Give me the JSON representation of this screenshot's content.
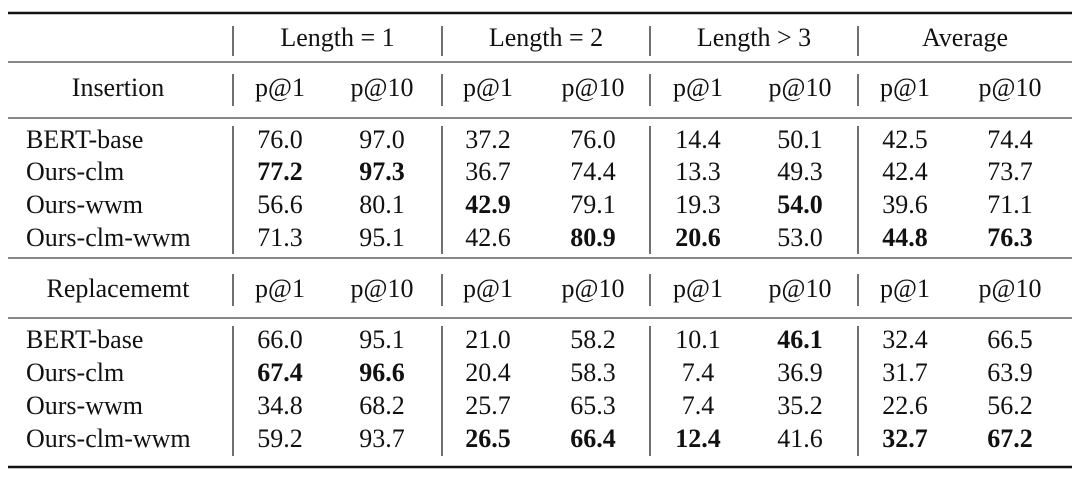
{
  "table": {
    "groups": [
      "Length = 1",
      "Length = 2",
      "Length > 3",
      "Average"
    ],
    "sections": [
      {
        "label": "Insertion",
        "columns": [
          "p@1",
          "p@10",
          "p@1",
          "p@10",
          "p@1",
          "p@10",
          "p@1",
          "p@10"
        ],
        "rows": [
          {
            "label": "BERT-base",
            "cells": [
              {
                "text": "76.0"
              },
              {
                "text": "97.0"
              },
              {
                "text": "37.2"
              },
              {
                "text": "76.0"
              },
              {
                "text": "14.4"
              },
              {
                "text": "50.1"
              },
              {
                "text": "42.5"
              },
              {
                "text": "74.4"
              }
            ]
          },
          {
            "label": "Ours-clm",
            "cells": [
              {
                "text": "77.2",
                "bold": true
              },
              {
                "text": "97.3",
                "bold": true
              },
              {
                "text": "36.7"
              },
              {
                "text": "74.4"
              },
              {
                "text": "13.3"
              },
              {
                "text": "49.3"
              },
              {
                "text": "42.4"
              },
              {
                "text": "73.7"
              }
            ]
          },
          {
            "label": "Ours-wwm",
            "cells": [
              {
                "text": "56.6"
              },
              {
                "text": "80.1"
              },
              {
                "text": "42.9",
                "bold": true
              },
              {
                "text": "79.1"
              },
              {
                "text": "19.3"
              },
              {
                "text": "54.0",
                "bold": true
              },
              {
                "text": "39.6"
              },
              {
                "text": "71.1"
              }
            ]
          },
          {
            "label": "Ours-clm-wwm",
            "cells": [
              {
                "text": "71.3"
              },
              {
                "text": "95.1"
              },
              {
                "text": "42.6"
              },
              {
                "text": "80.9",
                "bold": true
              },
              {
                "text": "20.6",
                "bold": true
              },
              {
                "text": "53.0"
              },
              {
                "text": "44.8",
                "bold": true
              },
              {
                "text": "76.3",
                "bold": true
              }
            ]
          }
        ]
      },
      {
        "label": "Replacememt",
        "columns": [
          "p@1",
          "p@10",
          "p@1",
          "p@10",
          "p@1",
          "p@10",
          "p@1",
          "p@10"
        ],
        "rows": [
          {
            "label": "BERT-base",
            "cells": [
              {
                "text": "66.0"
              },
              {
                "text": "95.1"
              },
              {
                "text": "21.0"
              },
              {
                "text": "58.2"
              },
              {
                "text": "10.1"
              },
              {
                "text": "46.1",
                "bold": true
              },
              {
                "text": "32.4"
              },
              {
                "text": "66.5"
              }
            ]
          },
          {
            "label": "Ours-clm",
            "cells": [
              {
                "text": "67.4",
                "bold": true
              },
              {
                "text": "96.6",
                "bold": true
              },
              {
                "text": "20.4"
              },
              {
                "text": "58.3"
              },
              {
                "text": "7.4"
              },
              {
                "text": "36.9"
              },
              {
                "text": "31.7"
              },
              {
                "text": "63.9"
              }
            ]
          },
          {
            "label": "Ours-wwm",
            "cells": [
              {
                "text": "34.8"
              },
              {
                "text": "68.2"
              },
              {
                "text": "25.7"
              },
              {
                "text": "65.3"
              },
              {
                "text": "7.4"
              },
              {
                "text": "35.2"
              },
              {
                "text": "22.6"
              },
              {
                "text": "56.2"
              }
            ]
          },
          {
            "label": "Ours-clm-wwm",
            "cells": [
              {
                "text": "59.2"
              },
              {
                "text": "93.7"
              },
              {
                "text": "26.5",
                "bold": true
              },
              {
                "text": "66.4",
                "bold": true
              },
              {
                "text": "12.4",
                "bold": true
              },
              {
                "text": "41.6"
              },
              {
                "text": "32.7",
                "bold": true
              },
              {
                "text": "67.2",
                "bold": true
              }
            ]
          }
        ]
      }
    ]
  }
}
